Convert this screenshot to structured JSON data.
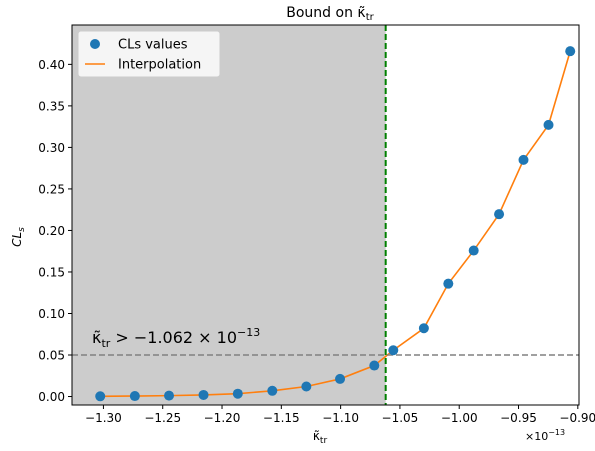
{
  "chart_data": {
    "type": "scatter",
    "title_main": "Bound on ",
    "title_sym": "κ̃",
    "title_sub": "tr",
    "xlabel_sym": "κ̃",
    "xlabel_sub": "tr",
    "ylabel_main": "CL",
    "ylabel_sub": "s",
    "x_multiplier": "×10",
    "x_multiplier_exp": "−13",
    "xlim": [
      -1.3265e-13,
      -8.99e-14
    ],
    "ylim": [
      -0.0102,
      0.4474
    ],
    "x_ticks": [
      {
        "value": -1.3e-13,
        "label": "−1.30"
      },
      {
        "value": -1.25e-13,
        "label": "−1.25"
      },
      {
        "value": -1.2e-13,
        "label": "−1.20"
      },
      {
        "value": -1.15e-13,
        "label": "−1.15"
      },
      {
        "value": -1.1e-13,
        "label": "−1.10"
      },
      {
        "value": -1.05e-13,
        "label": "−1.05"
      },
      {
        "value": -1e-13,
        "label": "−1.00"
      },
      {
        "value": -9.5e-14,
        "label": "−0.95"
      },
      {
        "value": -9e-14,
        "label": "−0.90"
      }
    ],
    "y_ticks": [
      {
        "value": 0.0,
        "label": "0.00"
      },
      {
        "value": 0.05,
        "label": "0.05"
      },
      {
        "value": 0.1,
        "label": "0.10"
      },
      {
        "value": 0.15,
        "label": "0.15"
      },
      {
        "value": 0.2,
        "label": "0.20"
      },
      {
        "value": 0.25,
        "label": "0.25"
      },
      {
        "value": 0.3,
        "label": "0.30"
      },
      {
        "value": 0.35,
        "label": "0.35"
      },
      {
        "value": 0.4,
        "label": "0.40"
      }
    ],
    "series": [
      {
        "name": "CLs values",
        "kind": "points",
        "color": "#1f77b4",
        "x": [
          -1.3027e-13,
          -1.2735e-13,
          -1.2447e-13,
          -1.2156e-13,
          -1.1867e-13,
          -1.1576e-13,
          -1.1289e-13,
          -1.1005e-13,
          -1.0716e-13,
          -1.0556e-13,
          -1.0298e-13,
          -1.0092e-13,
          -9.878e-14,
          -9.664e-14,
          -9.458e-14,
          -9.247e-14,
          -9.064e-14
        ],
        "y": [
          0.0003,
          0.0006,
          0.0011,
          0.0019,
          0.0034,
          0.0069,
          0.0121,
          0.0212,
          0.0373,
          0.0557,
          0.0822,
          0.1359,
          0.1758,
          0.2196,
          0.285,
          0.3271,
          0.4159
        ]
      },
      {
        "name": "Interpolation",
        "kind": "line",
        "color": "#ff7f0e"
      }
    ],
    "threshold": {
      "value": 0.05,
      "color": "#808080"
    },
    "bound": {
      "value": -1.062e-13,
      "color": "#008000"
    },
    "excluded_region_color": "#cccccc",
    "annotation": {
      "sym": "κ̃",
      "sub": "tr",
      "text": " > −1.062 × 10",
      "exp": "−13",
      "color": "#800080"
    },
    "legend": {
      "position": "upper left"
    },
    "grid": false
  }
}
